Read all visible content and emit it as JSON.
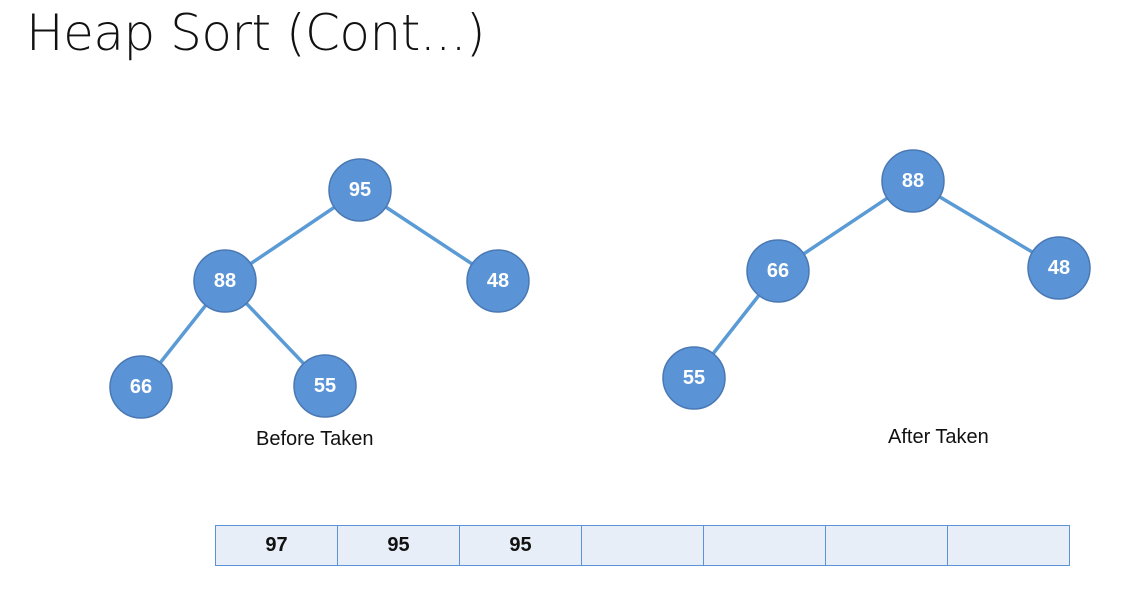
{
  "slide": {
    "title": "Heap Sort (Cont...)"
  },
  "colors": {
    "node_fill": "#5b94d6",
    "edge": "#5b9bd5",
    "array_fill": "#e8eef8",
    "array_border": "#5b94d6"
  },
  "before_tree": {
    "caption": "Before Taken",
    "nodes": [
      {
        "id": "b95",
        "value": "95"
      },
      {
        "id": "b88",
        "value": "88"
      },
      {
        "id": "b48",
        "value": "48"
      },
      {
        "id": "b66",
        "value": "66"
      },
      {
        "id": "b55",
        "value": "55"
      }
    ],
    "edges": [
      [
        "b95",
        "b88"
      ],
      [
        "b95",
        "b48"
      ],
      [
        "b88",
        "b66"
      ],
      [
        "b88",
        "b55"
      ]
    ]
  },
  "after_tree": {
    "caption": "After Taken",
    "nodes": [
      {
        "id": "a88",
        "value": "88"
      },
      {
        "id": "a66",
        "value": "66"
      },
      {
        "id": "a48",
        "value": "48"
      },
      {
        "id": "a55",
        "value": "55"
      }
    ],
    "edges": [
      [
        "a88",
        "a66"
      ],
      [
        "a88",
        "a48"
      ],
      [
        "a66",
        "a55"
      ]
    ]
  },
  "array": {
    "cells": [
      "97",
      "95",
      "95",
      "",
      "",
      "",
      ""
    ]
  }
}
